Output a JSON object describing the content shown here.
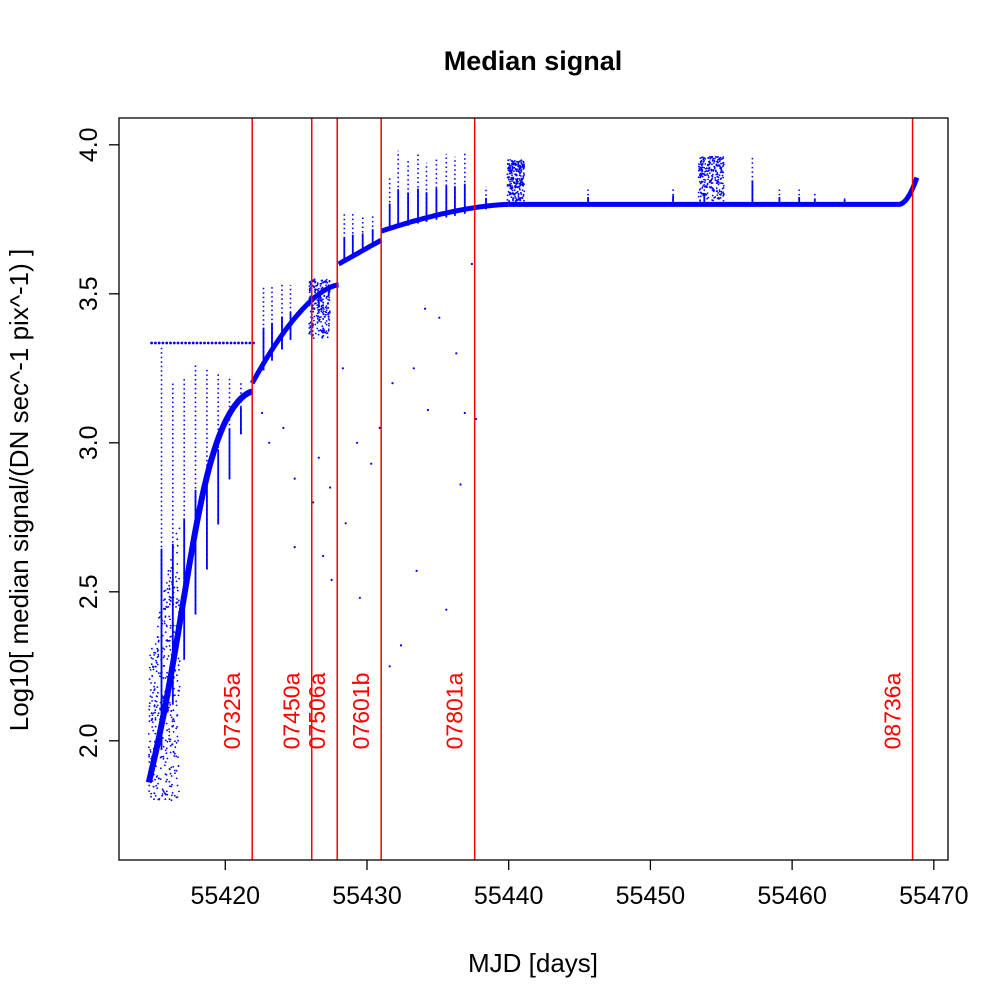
{
  "chart_data": {
    "type": "scatter",
    "title": "Median signal",
    "xlabel": "MJD [days]",
    "ylabel": "Log10[ median signal/(DN sec^-1 pix^-1) ]",
    "xlim": [
      55412.5,
      55471
    ],
    "ylim": [
      1.6,
      4.09
    ],
    "x_ticks": [
      55420,
      55430,
      55440,
      55450,
      55460,
      55470
    ],
    "x_tick_labels": [
      "55420",
      "55430",
      "55440",
      "55450",
      "55460",
      "55470"
    ],
    "y_ticks": [
      2.0,
      2.5,
      3.0,
      3.5,
      4.0
    ],
    "y_tick_labels": [
      "2.0",
      "2.5",
      "3.0",
      "3.5",
      "4.0"
    ],
    "grid": false,
    "point_color": "#0000ff",
    "vline_color": "#ff0000",
    "vertical_lines": [
      {
        "x": 55421.9,
        "label": "07325a"
      },
      {
        "x": 55426.1,
        "label": "07450a"
      },
      {
        "x": 55427.9,
        "label": "07506a"
      },
      {
        "x": 55431.0,
        "label": "07601b"
      },
      {
        "x": 55437.6,
        "label": "07801a"
      },
      {
        "x": 55468.5,
        "label": "08736a"
      }
    ],
    "series": [
      {
        "segments": [
          {
            "x_start": 55414.6,
            "x_end": 55421.9,
            "y_start": 1.8,
            "y_end": 3.18
          },
          {
            "x_start": 55421.9,
            "x_end": 55428.0,
            "y_start": 3.2,
            "y_end": 3.53
          },
          {
            "x_start": 55428.0,
            "x_end": 55431.0,
            "y_start": 3.6,
            "y_end": 3.68
          },
          {
            "x_start": 55431.0,
            "x_end": 55440.0,
            "y_start": 3.71,
            "y_end": 3.8
          },
          {
            "x_start": 55440.0,
            "x_end": 55467.5,
            "y_start": 3.8,
            "y_end": 3.8
          },
          {
            "x_start": 55467.5,
            "x_end": 55468.8,
            "y_start": 3.8,
            "y_end": 3.89
          }
        ],
        "spikes": [
          {
            "x": 55415.5,
            "y": 3.32
          },
          {
            "x": 55416.3,
            "y": 3.2
          },
          {
            "x": 55417.1,
            "y": 3.22
          },
          {
            "x": 55417.9,
            "y": 3.26
          },
          {
            "x": 55418.7,
            "y": 3.25
          },
          {
            "x": 55419.5,
            "y": 3.23
          },
          {
            "x": 55420.3,
            "y": 3.22
          },
          {
            "x": 55421.1,
            "y": 3.21
          },
          {
            "x": 55422.7,
            "y": 3.53
          },
          {
            "x": 55423.3,
            "y": 3.53
          },
          {
            "x": 55424.0,
            "y": 3.53
          },
          {
            "x": 55424.6,
            "y": 3.53
          },
          {
            "x": 55426.6,
            "y": 3.53
          },
          {
            "x": 55427.3,
            "y": 3.52
          },
          {
            "x": 55428.4,
            "y": 3.77
          },
          {
            "x": 55429.0,
            "y": 3.77
          },
          {
            "x": 55429.7,
            "y": 3.76
          },
          {
            "x": 55430.4,
            "y": 3.77
          },
          {
            "x": 55431.6,
            "y": 3.89
          },
          {
            "x": 55432.2,
            "y": 3.98
          },
          {
            "x": 55432.9,
            "y": 3.95
          },
          {
            "x": 55433.6,
            "y": 3.97
          },
          {
            "x": 55434.2,
            "y": 3.94
          },
          {
            "x": 55434.9,
            "y": 3.96
          },
          {
            "x": 55435.6,
            "y": 3.97
          },
          {
            "x": 55436.2,
            "y": 3.96
          },
          {
            "x": 55436.9,
            "y": 3.97
          },
          {
            "x": 55438.4,
            "y": 3.86
          },
          {
            "x": 55445.6,
            "y": 3.85
          },
          {
            "x": 55451.6,
            "y": 3.86
          },
          {
            "x": 55453.8,
            "y": 3.86
          },
          {
            "x": 55457.2,
            "y": 3.96
          },
          {
            "x": 55459.1,
            "y": 3.85
          },
          {
            "x": 55460.5,
            "y": 3.85
          },
          {
            "x": 55461.6,
            "y": 3.84
          },
          {
            "x": 55463.7,
            "y": 3.83
          }
        ],
        "plateau_points": {
          "x_start": 55414.8,
          "x_end": 55422.0,
          "y": 3.335,
          "count": 28
        },
        "clusters": [
          {
            "x_start": 55425.9,
            "x_end": 55427.4,
            "y_min": 3.35,
            "y_max": 3.55
          },
          {
            "x_start": 55439.9,
            "x_end": 55441.1,
            "y_min": 3.81,
            "y_max": 3.95
          },
          {
            "x_start": 55453.4,
            "x_end": 55455.2,
            "y_min": 3.81,
            "y_max": 3.96
          }
        ],
        "outliers": [
          {
            "x": 55422.6,
            "y": 3.1
          },
          {
            "x": 55423.1,
            "y": 3.0
          },
          {
            "x": 55424.1,
            "y": 3.05
          },
          {
            "x": 55424.9,
            "y": 2.88
          },
          {
            "x": 55424.9,
            "y": 2.65
          },
          {
            "x": 55426.2,
            "y": 2.8
          },
          {
            "x": 55426.6,
            "y": 2.95
          },
          {
            "x": 55426.9,
            "y": 2.62
          },
          {
            "x": 55427.4,
            "y": 2.85
          },
          {
            "x": 55427.5,
            "y": 2.54
          },
          {
            "x": 55428.3,
            "y": 3.25
          },
          {
            "x": 55428.5,
            "y": 2.73
          },
          {
            "x": 55429.3,
            "y": 3.0
          },
          {
            "x": 55429.5,
            "y": 2.48
          },
          {
            "x": 55430.3,
            "y": 2.93
          },
          {
            "x": 55430.9,
            "y": 3.05
          },
          {
            "x": 55431.6,
            "y": 2.25
          },
          {
            "x": 55431.8,
            "y": 3.2
          },
          {
            "x": 55432.4,
            "y": 2.32
          },
          {
            "x": 55433.3,
            "y": 3.25
          },
          {
            "x": 55433.5,
            "y": 2.57
          },
          {
            "x": 55434.1,
            "y": 3.45
          },
          {
            "x": 55434.3,
            "y": 3.11
          },
          {
            "x": 55435.1,
            "y": 3.42
          },
          {
            "x": 55435.6,
            "y": 2.44
          },
          {
            "x": 55436.3,
            "y": 3.3
          },
          {
            "x": 55436.6,
            "y": 2.86
          },
          {
            "x": 55436.9,
            "y": 3.1
          },
          {
            "x": 55437.4,
            "y": 3.6
          },
          {
            "x": 55437.7,
            "y": 3.08
          }
        ]
      }
    ]
  }
}
